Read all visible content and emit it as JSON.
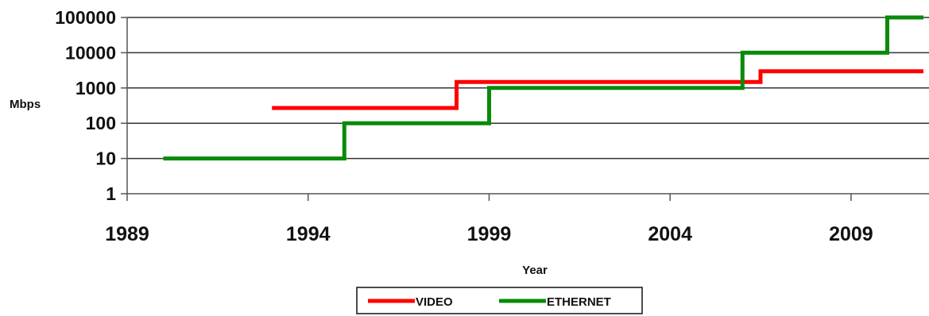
{
  "chart_data": {
    "type": "line",
    "step": true,
    "title": "",
    "xlabel": "Year",
    "ylabel": "Mbps",
    "yscale": "log",
    "xlim": [
      1989,
      2011
    ],
    "ylim": [
      1,
      100000
    ],
    "x_ticks": [
      "1989",
      "1994",
      "1999",
      "2004",
      "2009"
    ],
    "y_ticks": [
      "1",
      "10",
      "100",
      "1000",
      "10000",
      "100000"
    ],
    "grid": "horizontal",
    "legend_position": "bottom-center",
    "series": [
      {
        "name": "VIDEO",
        "color": "#ff0000",
        "points": [
          [
            1993,
            270
          ],
          [
            1998.1,
            270
          ],
          [
            1998.1,
            1485
          ],
          [
            2006.5,
            1485
          ],
          [
            2006.5,
            2970
          ],
          [
            2011,
            2970
          ]
        ]
      },
      {
        "name": "ETHERNET",
        "color": "#0a8a0a",
        "points": [
          [
            1990,
            10
          ],
          [
            1995,
            10
          ],
          [
            1995,
            100
          ],
          [
            1999,
            100
          ],
          [
            1999,
            1000
          ],
          [
            2006,
            1000
          ],
          [
            2006,
            10000
          ],
          [
            2010,
            10000
          ],
          [
            2010,
            100000
          ],
          [
            2011,
            100000
          ]
        ]
      }
    ]
  }
}
